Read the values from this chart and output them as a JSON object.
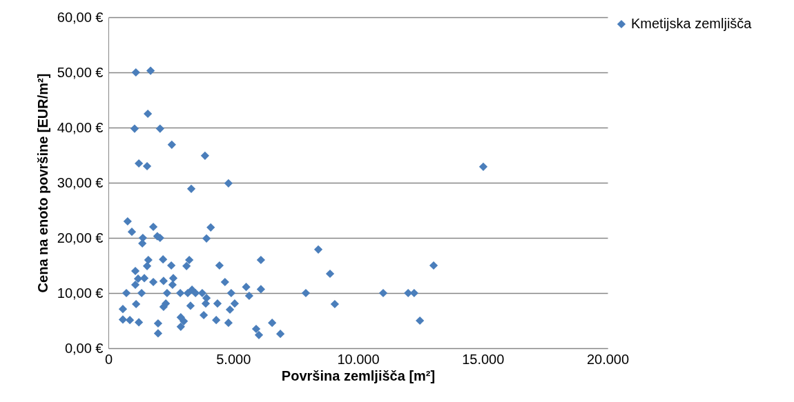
{
  "chart_data": {
    "type": "scatter",
    "xlabel": "Površina zemljišča [m²]",
    "ylabel": "Cena na enoto površine [EUR/m²]",
    "xlim": [
      0,
      20000
    ],
    "ylim": [
      0,
      60
    ],
    "xticks": [
      {
        "value": 0,
        "label": "0"
      },
      {
        "value": 5000,
        "label": "5.000"
      },
      {
        "value": 10000,
        "label": "10.000"
      },
      {
        "value": 15000,
        "label": "15.000"
      },
      {
        "value": 20000,
        "label": "20.000"
      }
    ],
    "yticks": [
      {
        "value": 0,
        "label": "0,00 €"
      },
      {
        "value": 10,
        "label": "10,00 €"
      },
      {
        "value": 20,
        "label": "20,00 €"
      },
      {
        "value": 30,
        "label": "30,00 €"
      },
      {
        "value": 40,
        "label": "40,00 €"
      },
      {
        "value": 50,
        "label": "50,00 €"
      },
      {
        "value": 60,
        "label": "60,00 €"
      }
    ],
    "grid": "y",
    "legend": "right",
    "marker": "diamond",
    "series": [
      {
        "name": "Kmetijska zemljišča",
        "color": "#4a7ebb",
        "x": [
          1100,
          1690,
          1580,
          1050,
          2070,
          2540,
          1220,
          1550,
          3870,
          3320,
          4810,
          15020,
          770,
          940,
          1800,
          1960,
          2070,
          1380,
          1360,
          4100,
          3930,
          1600,
          1550,
          2190,
          2520,
          3240,
          3130,
          4450,
          6110,
          8410,
          8880,
          13030,
          1080,
          1190,
          1080,
          1440,
          1800,
          2210,
          2600,
          2570,
          4670,
          5520,
          5640,
          1330,
          720,
          2350,
          2880,
          3180,
          3490,
          3760,
          3930,
          4920,
          6110,
          3350,
          3290,
          3900,
          4370,
          5060,
          4870,
          3820,
          2210,
          2300,
          1110,
          580,
          580,
          860,
          1220,
          1990,
          1990,
          2900,
          3020,
          2900,
          4320,
          4810,
          5920,
          6030,
          6560,
          6890,
          7910,
          9070,
          11010,
          12010,
          12250,
          12480
        ],
        "values": [
          50,
          50.3,
          42.5,
          39.8,
          39.8,
          36.9,
          33.5,
          33,
          34.9,
          28.9,
          29.9,
          32.9,
          23,
          21.1,
          22,
          20.3,
          20,
          20,
          19,
          21.9,
          19.9,
          16,
          14.9,
          16.1,
          15,
          16,
          14.9,
          15,
          16,
          17.9,
          13.5,
          15,
          14,
          12.6,
          11.5,
          12.7,
          12,
          12.2,
          12.7,
          11.5,
          12,
          11.1,
          9.5,
          10,
          10,
          10,
          10,
          10,
          10,
          10,
          9.1,
          10,
          10.7,
          10.6,
          7.7,
          8.1,
          8.1,
          8.1,
          7,
          6,
          7.5,
          8.1,
          8,
          7.1,
          5.2,
          5.1,
          4.7,
          4.5,
          2.7,
          5.6,
          4.9,
          3.9,
          5.1,
          4.6,
          3.5,
          2.4,
          4.6,
          2.6,
          10,
          8,
          10,
          10,
          10,
          5
        ]
      }
    ]
  }
}
